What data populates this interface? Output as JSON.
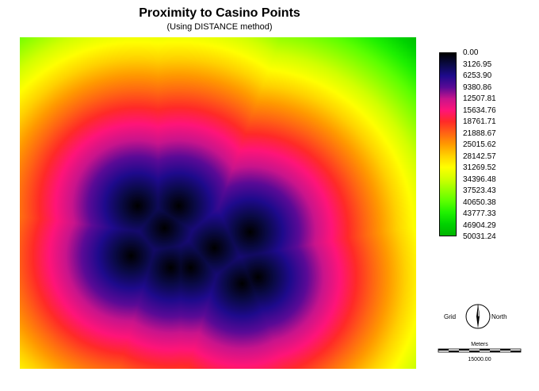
{
  "title": "Proximity to Casino Points",
  "subtitle": "(Using DISTANCE method)",
  "legend": {
    "labels": [
      "0.00",
      "3126.95",
      "6253.90",
      "9380.86",
      "12507.81",
      "15634.76",
      "18761.71",
      "21888.67",
      "25015.62",
      "28142.57",
      "31269.52",
      "34396.48",
      "37523.43",
      "40650.38",
      "43777.33",
      "46904.29",
      "50031.24"
    ],
    "colors": [
      "#000000",
      "#0a0a46",
      "#1e0a8c",
      "#5a0a96",
      "#c8148c",
      "#ff1478",
      "#ff2a28",
      "#ff6414",
      "#ff9a00",
      "#ffd200",
      "#ffff00",
      "#d2ff00",
      "#96ff00",
      "#5aff00",
      "#1ef000",
      "#00d200",
      "#00b400"
    ]
  },
  "north_arrow": {
    "left_label": "Grid",
    "right_label": "North",
    "icon": "north-arrow-icon"
  },
  "scale_bar": {
    "unit_label": "Meters",
    "value_label": "15000.00"
  }
}
